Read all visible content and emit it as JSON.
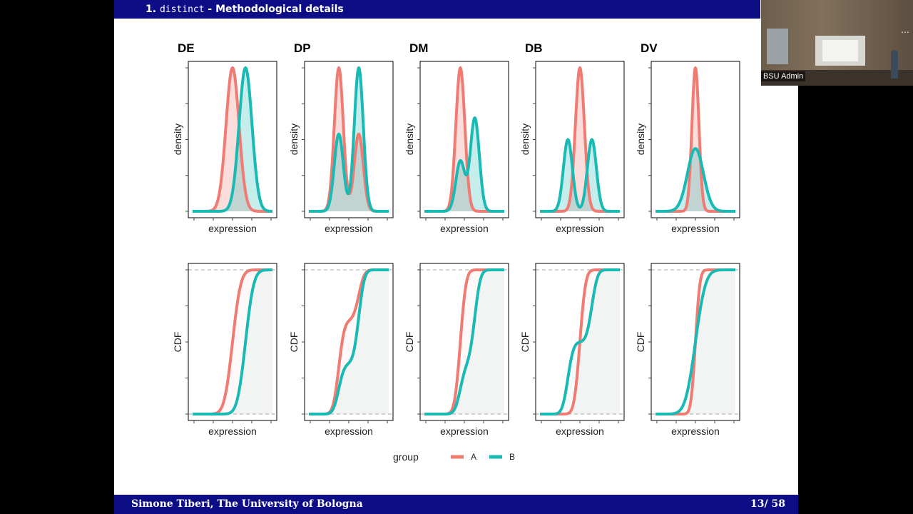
{
  "slide": {
    "header_number": "1.",
    "header_mono": "distinct",
    "header_rest": " - Methodological details",
    "footer_author": "Simone Tiberi, The University of Bologna",
    "footer_page": "13/ 58"
  },
  "video": {
    "participant_name": "BSU Admin",
    "menu_glyph": "⋯"
  },
  "colors": {
    "A": "#f07b72",
    "B": "#19b9b4",
    "header_bg": "#0d0d86"
  },
  "chart_data": {
    "type": "line",
    "title": "",
    "panels": [
      "DE",
      "DP",
      "DM",
      "DB",
      "DV"
    ],
    "rows": [
      {
        "kind": "density",
        "ylabel": "density",
        "xlabel": "expression"
      },
      {
        "kind": "cdf",
        "ylabel": "CDF",
        "xlabel": "expression"
      }
    ],
    "xlim": [
      -4,
      4
    ],
    "legend": {
      "title": "group",
      "entries": [
        "A",
        "B"
      ],
      "placement": "bottom"
    },
    "series_params": {
      "DE": {
        "A": [
          [
            1,
            0,
            0.65
          ]
        ],
        "B": [
          [
            1,
            1.3,
            0.65
          ]
        ]
      },
      "DP": {
        "A": [
          [
            0.65,
            -1,
            0.45
          ],
          [
            0.35,
            1,
            0.45
          ]
        ],
        "B": [
          [
            0.35,
            -1,
            0.45
          ],
          [
            0.65,
            1,
            0.45
          ]
        ]
      },
      "DM": {
        "A": [
          [
            1,
            -0.4,
            0.45
          ]
        ],
        "B": [
          [
            0.35,
            -0.4,
            0.45
          ],
          [
            0.65,
            1.05,
            0.45
          ]
        ]
      },
      "DB": {
        "A": [
          [
            1,
            0,
            0.45
          ]
        ],
        "B": [
          [
            0.5,
            -1.2,
            0.45
          ],
          [
            0.5,
            1.2,
            0.45
          ]
        ]
      },
      "DV": {
        "A": [
          [
            1,
            0,
            0.35
          ]
        ],
        "B": [
          [
            1,
            0,
            0.8
          ]
        ]
      }
    }
  }
}
